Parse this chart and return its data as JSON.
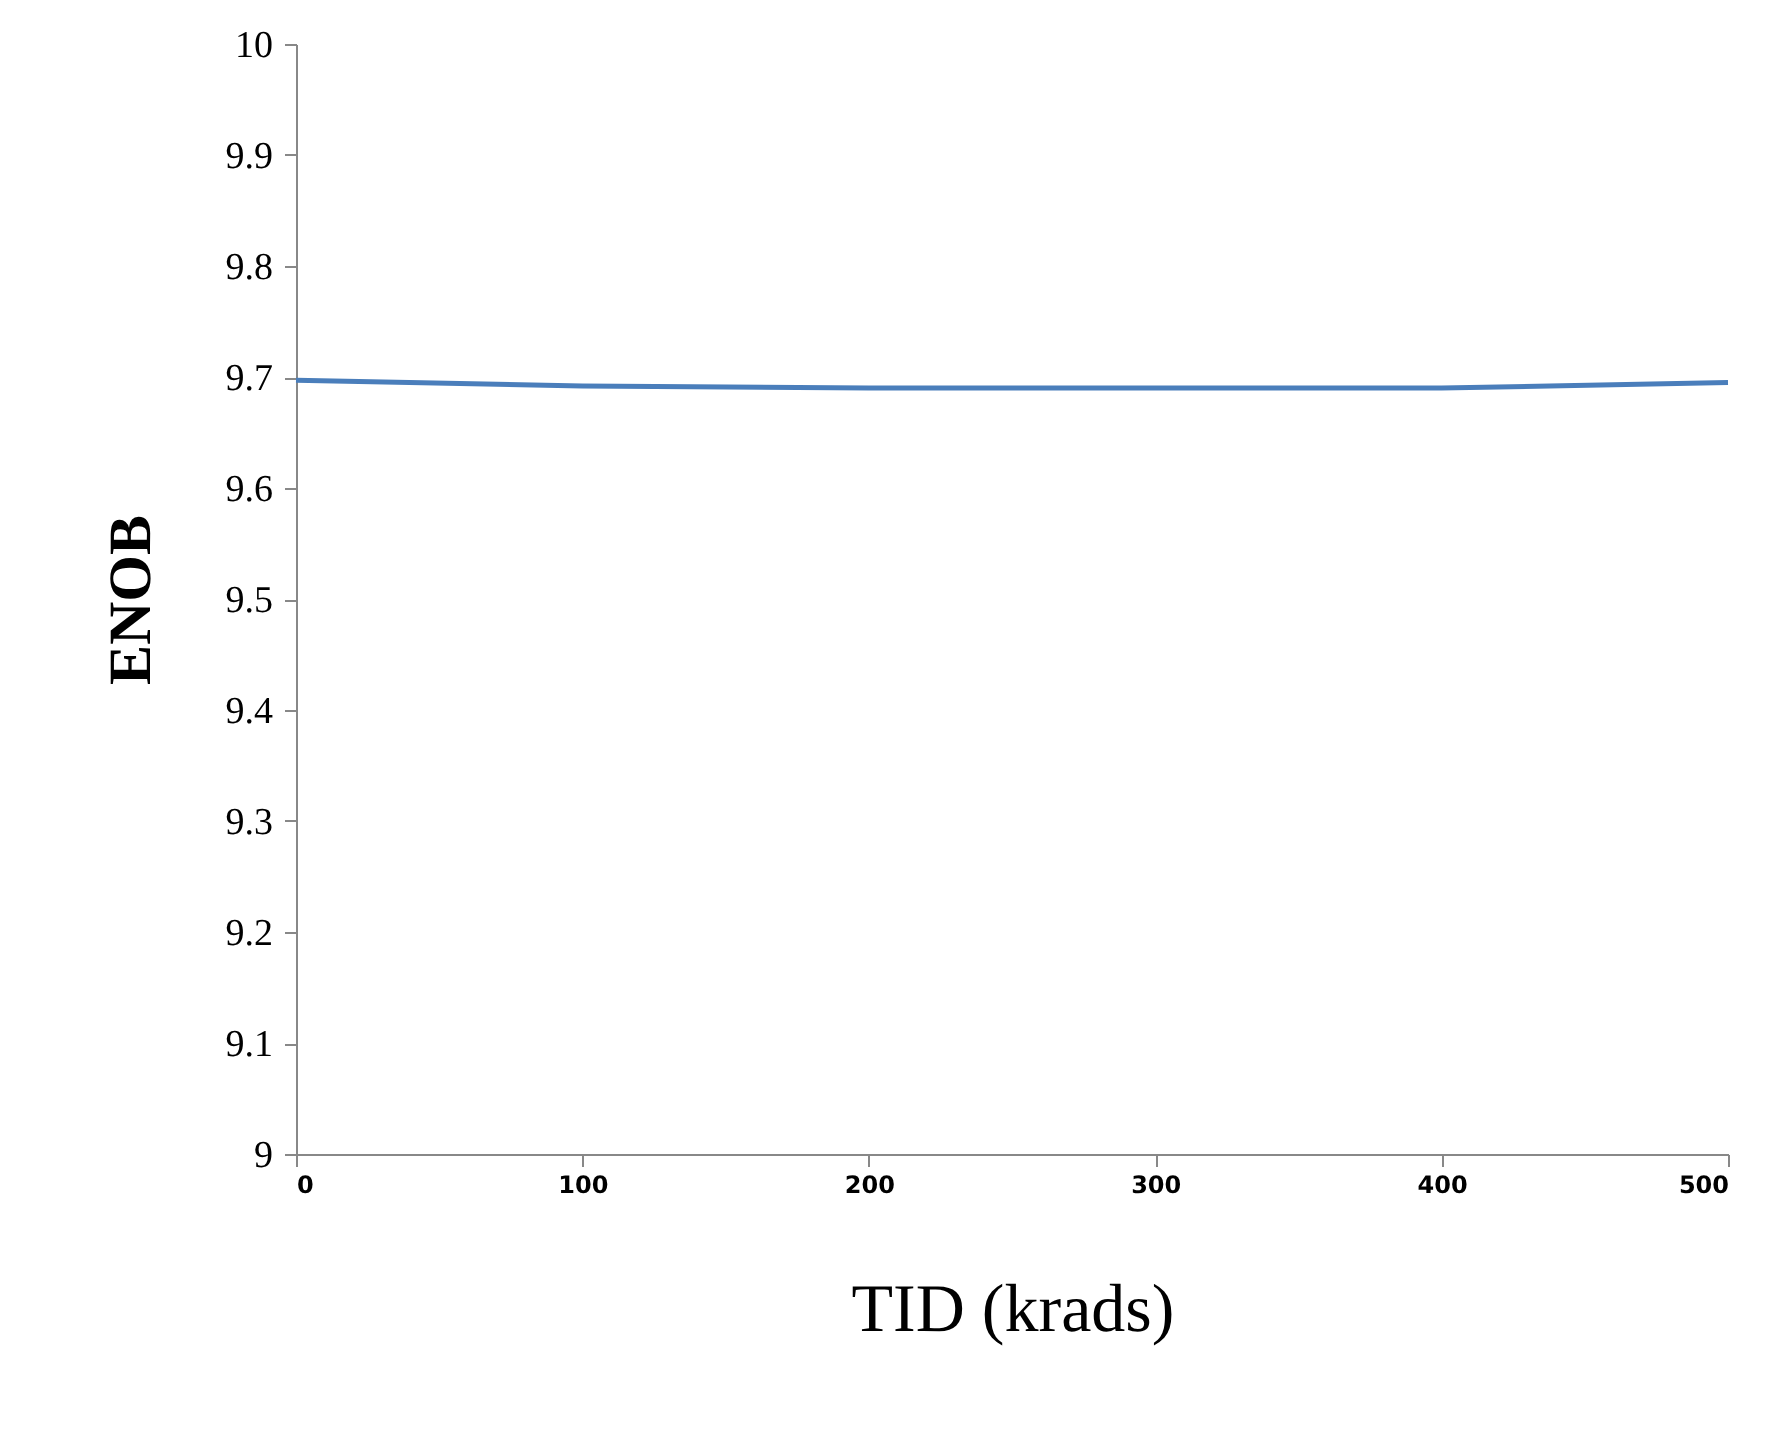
{
  "chart_data": {
    "type": "line",
    "xlabel": "TID  (krads)",
    "ylabel": "ENOB",
    "x": [
      0,
      100,
      200,
      300,
      400,
      500
    ],
    "series": [
      {
        "color": "#4a7ebb",
        "values": [
          9.697,
          9.692,
          9.69,
          9.69,
          9.69,
          9.695
        ]
      }
    ],
    "xlim": [
      0,
      500
    ],
    "xticks": [
      0,
      100,
      200,
      300,
      400,
      500
    ],
    "ylim": [
      9,
      10
    ],
    "yticks": [
      9,
      9.1,
      9.2,
      9.3,
      9.4,
      9.5,
      9.6,
      9.7,
      9.8,
      9.9,
      10
    ],
    "grid": false,
    "legend": false,
    "marker": "none",
    "line_style": "solid"
  }
}
